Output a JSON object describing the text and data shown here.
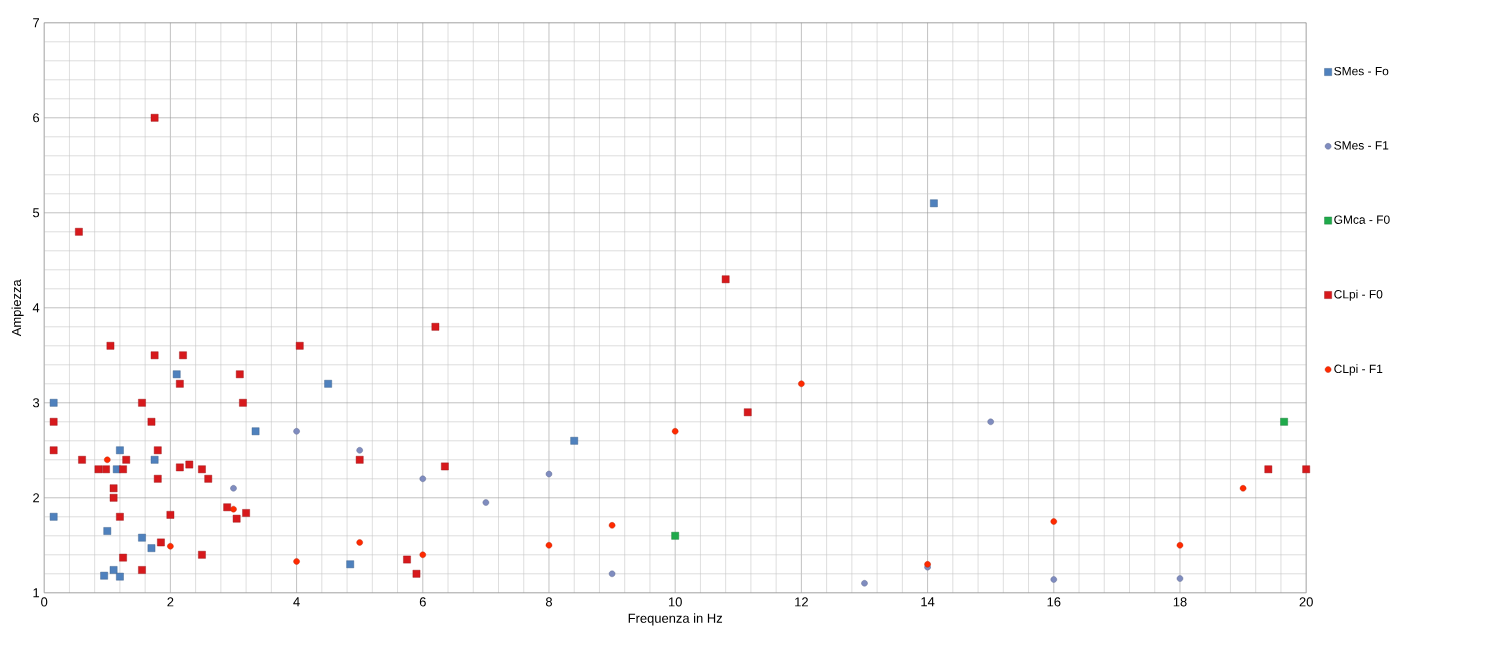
{
  "chart_data": {
    "type": "scatter",
    "xlabel": "Frequenza in Hz",
    "ylabel": "Ampiezza",
    "xlim": [
      0,
      20
    ],
    "xticks": [
      0,
      2,
      4,
      6,
      8,
      10,
      12,
      14,
      16,
      18,
      20
    ],
    "ylim": [
      1,
      7
    ],
    "yticks": [
      1,
      2,
      3,
      4,
      5,
      6,
      7
    ],
    "grid": true,
    "legend": "right",
    "series": [
      {
        "name": "SMes - Fo",
        "color": "#4f81bd",
        "marker": "square",
        "x": [
          0.15,
          0.15,
          0.95,
          1.1,
          1.2,
          1.0,
          1.55,
          1.7,
          1.15,
          1.2,
          1.75,
          2.1,
          3.35,
          4.5,
          4.85,
          8.4,
          14.1
        ],
        "values": [
          3.0,
          1.8,
          1.18,
          1.24,
          1.17,
          1.65,
          1.58,
          1.47,
          2.3,
          2.5,
          2.4,
          3.3,
          2.7,
          3.2,
          1.3,
          2.6,
          5.1
        ]
      },
      {
        "name": "SMes - F1",
        "color": "#7f8cbf",
        "marker": "circle",
        "x": [
          3.0,
          4.0,
          5.0,
          6.0,
          7.0,
          8.0,
          9.0,
          13.0,
          14.0,
          15.0,
          16.0,
          18.0
        ],
        "values": [
          2.1,
          2.7,
          2.5,
          2.2,
          1.95,
          2.25,
          1.2,
          1.1,
          1.27,
          2.8,
          1.14,
          1.15
        ]
      },
      {
        "name": "GMca - F0",
        "color": "#1faa4b",
        "marker": "square",
        "x": [
          10.0,
          19.65
        ],
        "values": [
          1.6,
          2.8
        ]
      },
      {
        "name": "CLpi - F0",
        "color": "#d7191c",
        "marker": "square",
        "x": [
          1.75,
          0.55,
          1.05,
          1.75,
          2.2,
          2.15,
          1.55,
          1.7,
          0.15,
          0.15,
          0.6,
          0.86,
          0.98,
          1.1,
          1.1,
          1.2,
          1.25,
          1.3,
          1.8,
          1.8,
          2.15,
          2.3,
          2.5,
          2.6,
          2.9,
          3.05,
          3.2,
          2.0,
          1.85,
          1.25,
          1.55,
          2.5,
          3.1,
          3.15,
          4.05,
          5.0,
          5.75,
          5.9,
          6.2,
          6.35,
          10.8,
          11.15,
          19.4,
          20.0
        ],
        "values": [
          6.0,
          4.8,
          3.6,
          3.5,
          3.5,
          3.2,
          3.0,
          2.8,
          2.8,
          2.5,
          2.4,
          2.3,
          2.3,
          2.1,
          2.0,
          1.8,
          2.3,
          2.4,
          2.5,
          2.2,
          2.32,
          2.35,
          2.3,
          2.2,
          1.9,
          1.78,
          1.84,
          1.82,
          1.53,
          1.37,
          1.24,
          1.4,
          3.3,
          3.0,
          3.6,
          2.4,
          1.35,
          1.2,
          3.8,
          2.33,
          4.3,
          2.9,
          2.3,
          2.3
        ]
      },
      {
        "name": "CLpi - F1",
        "color": "#ff2a00",
        "marker": "circle",
        "x": [
          1.0,
          2.0,
          3.0,
          4.0,
          5.0,
          6.0,
          8.0,
          9.0,
          10.0,
          12.0,
          14.0,
          16.0,
          18.0,
          19.0
        ],
        "values": [
          2.4,
          1.49,
          1.88,
          1.33,
          1.53,
          1.4,
          1.5,
          1.71,
          2.7,
          3.2,
          1.3,
          1.75,
          1.5,
          2.1
        ]
      }
    ]
  }
}
